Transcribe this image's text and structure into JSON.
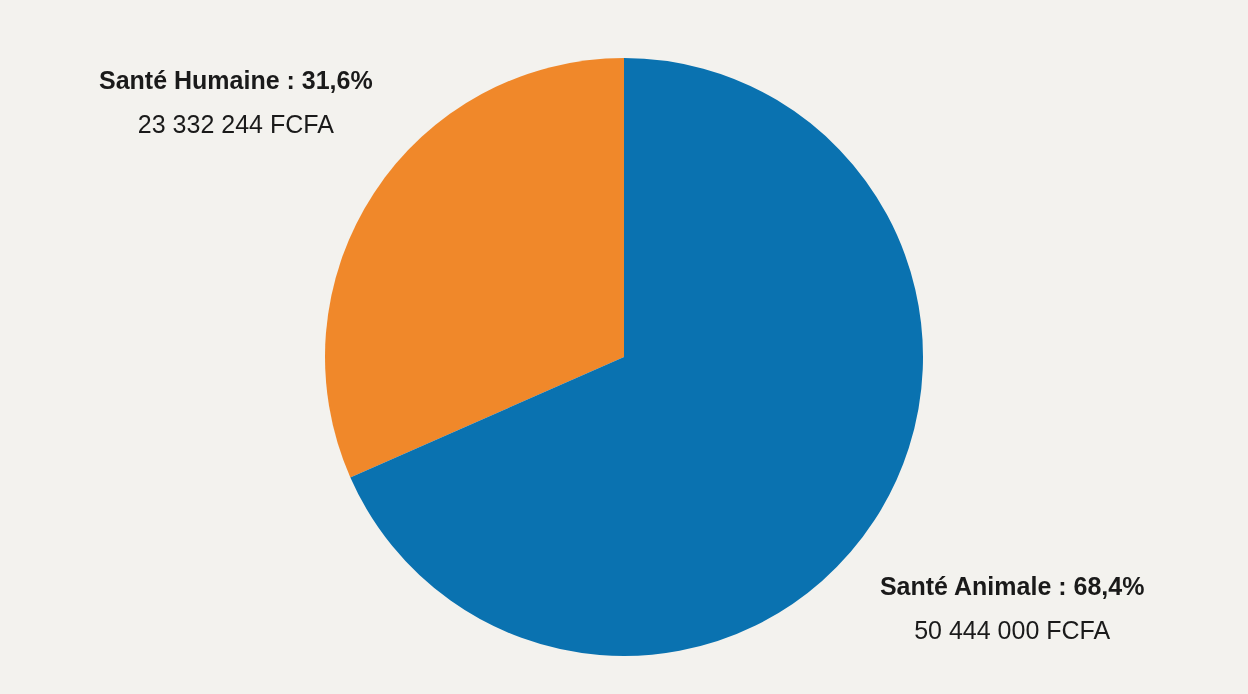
{
  "chart_data": {
    "type": "pie",
    "categories": [
      "Santé Humaine",
      "Santé Animale"
    ],
    "values": [
      31.6,
      68.4
    ],
    "colors": [
      "#f0882a",
      "#0a72b0"
    ],
    "value_labels": [
      "31,6%",
      "68,4%"
    ],
    "annotations": [
      "23 332 244 FCFA",
      "50 444 000 FCFA"
    ],
    "legend": false
  }
}
